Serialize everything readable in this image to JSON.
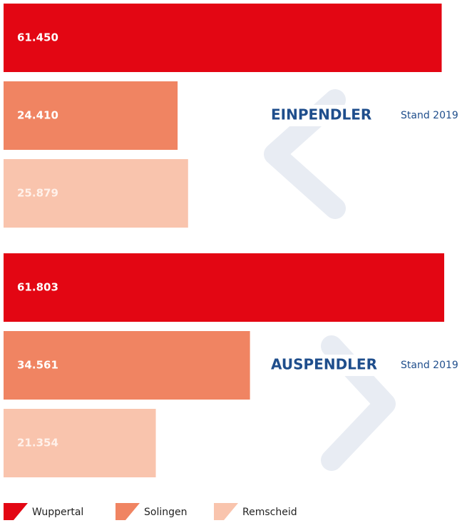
{
  "chart_data": {
    "type": "bar",
    "orientation": "horizontal",
    "categories": [
      "EINPENDLER",
      "AUSPENDLER"
    ],
    "subtitle": "Stand 2019",
    "series": [
      {
        "name": "Wuppertal",
        "color": "#e30613",
        "values": [
          61450,
          61803
        ],
        "value_labels": [
          "61.450",
          "61.803"
        ]
      },
      {
        "name": "Solingen",
        "color": "#f08462",
        "values": [
          24410,
          34561
        ],
        "value_labels": [
          "24.410",
          "34.561"
        ]
      },
      {
        "name": "Remscheid",
        "color": "#f9c4ad",
        "values": [
          25879,
          21354
        ],
        "value_labels": [
          "25.879",
          "21.354"
        ]
      }
    ]
  }
}
